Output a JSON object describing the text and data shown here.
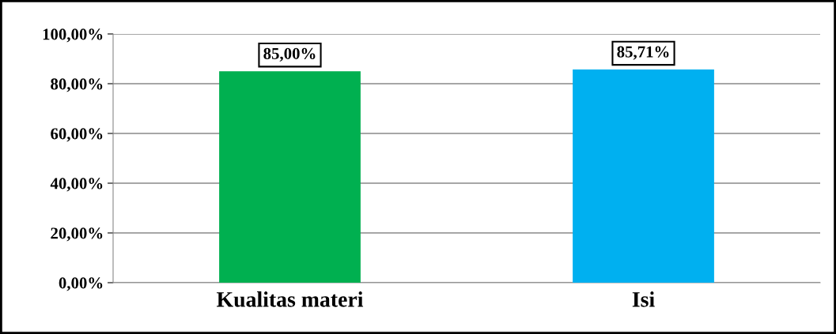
{
  "chart_data": {
    "type": "bar",
    "categories": [
      "Kualitas materi",
      "Isi"
    ],
    "values": [
      85.0,
      85.71
    ],
    "colors": [
      "#00b050",
      "#00b0f0"
    ],
    "value_labels": [
      "85,00%",
      "85,71%"
    ],
    "ylim": [
      0,
      100
    ],
    "yticks": [
      {
        "value": 0,
        "label": "0,00%"
      },
      {
        "value": 20,
        "label": "20,00%"
      },
      {
        "value": 40,
        "label": "40,00%"
      },
      {
        "value": 60,
        "label": "60,00%"
      },
      {
        "value": 80,
        "label": "80,00%"
      },
      {
        "value": 100,
        "label": "100,00%"
      }
    ],
    "grid": "y"
  }
}
